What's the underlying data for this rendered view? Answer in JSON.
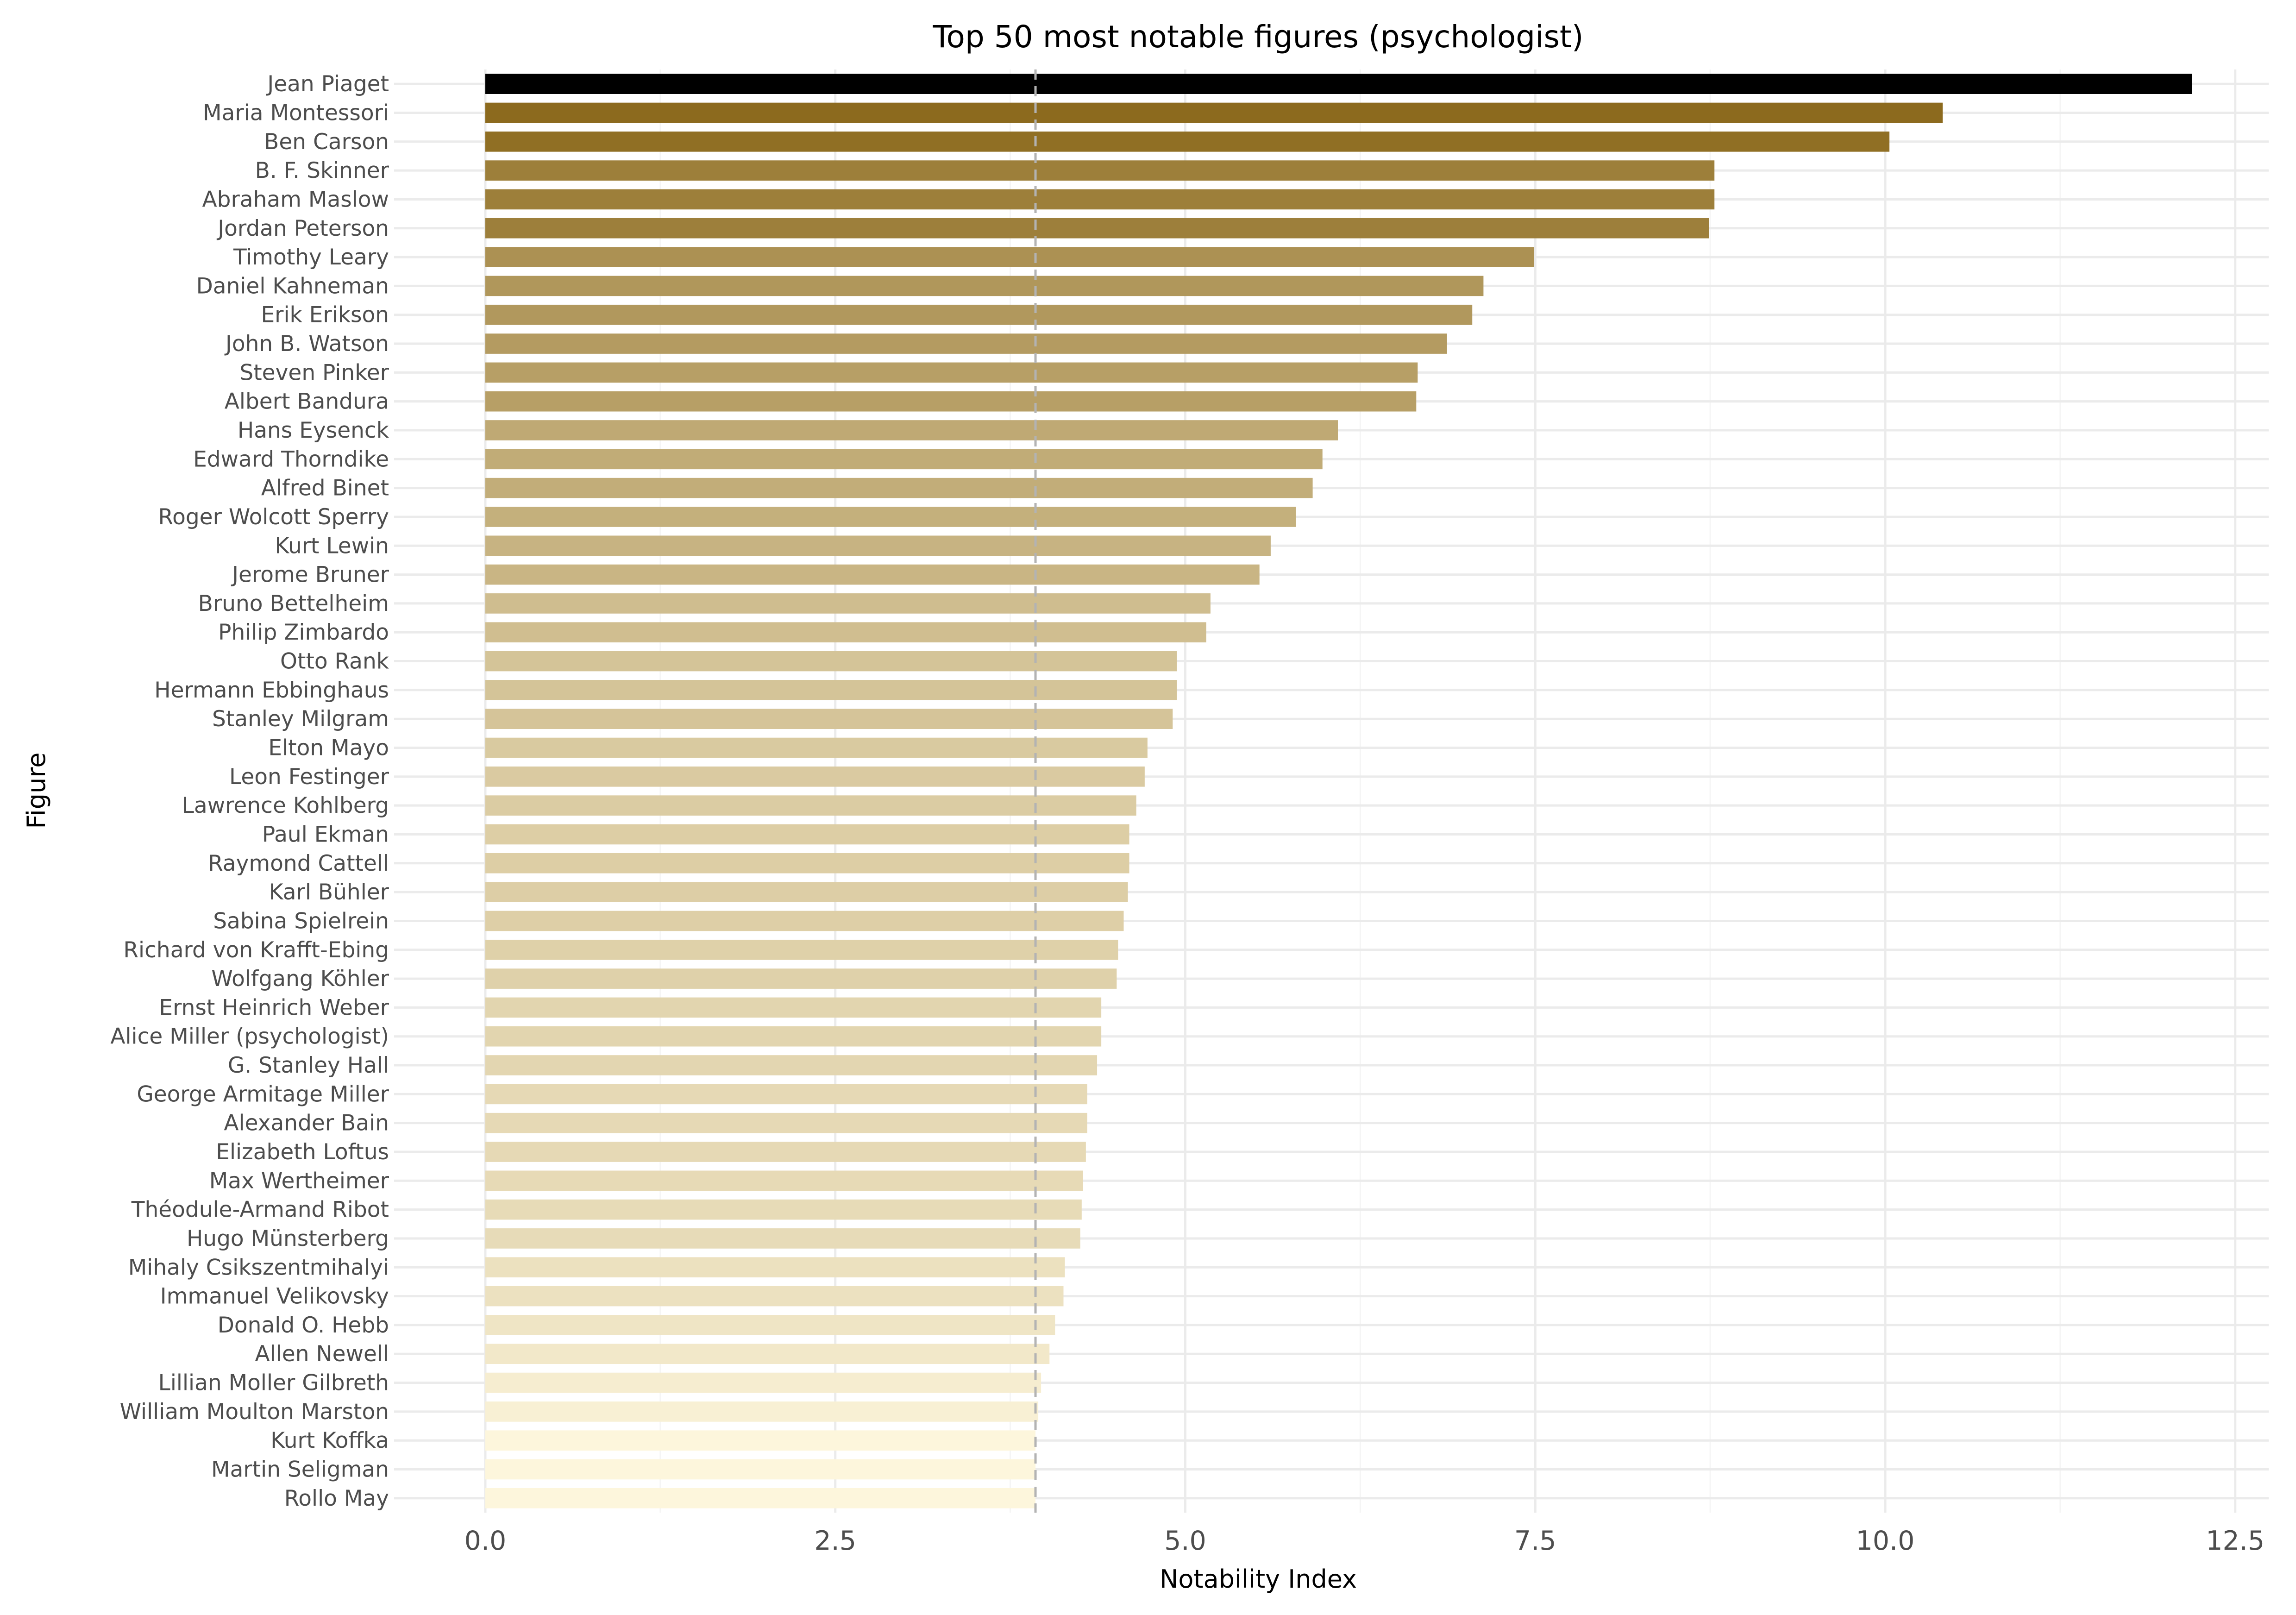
{
  "chart_data": {
    "type": "bar",
    "orientation": "horizontal",
    "title": "Top 50 most notable figures (psychologist)",
    "xlabel": "Notability Index",
    "ylabel": "Figure",
    "xlim": [
      -0.35,
      12.75
    ],
    "x_ticks": [
      0.0,
      2.5,
      5.0,
      7.5,
      10.0,
      12.5
    ],
    "x_tick_labels": [
      "0.0",
      "2.5",
      "5.0",
      "7.5",
      "10.0",
      "12.5"
    ],
    "reference_line": 3.93,
    "grid": true,
    "color_low": "#fdf6dc",
    "color_high": "#8c6a1e",
    "color_top": "#000000",
    "categories": [
      "Jean Piaget",
      "Maria Montessori",
      "Ben Carson",
      "B. F. Skinner",
      "Abraham Maslow",
      "Jordan Peterson",
      "Timothy Leary",
      "Daniel Kahneman",
      "Erik Erikson",
      "John B. Watson",
      "Steven Pinker",
      "Albert Bandura",
      "Hans Eysenck",
      "Edward Thorndike",
      "Alfred Binet",
      "Roger Wolcott Sperry",
      "Kurt Lewin",
      "Jerome Bruner",
      "Bruno Bettelheim",
      "Philip Zimbardo",
      "Otto Rank",
      "Hermann Ebbinghaus",
      "Stanley Milgram",
      "Elton Mayo",
      "Leon Festinger",
      "Lawrence Kohlberg",
      "Paul Ekman",
      "Raymond Cattell",
      "Karl Bühler",
      "Sabina Spielrein",
      "Richard von Krafft-Ebing",
      "Wolfgang Köhler",
      "Ernst Heinrich Weber",
      "Alice Miller (psychologist)",
      "G. Stanley Hall",
      "George Armitage Miller",
      "Alexander Bain",
      "Elizabeth Loftus",
      "Max Wertheimer",
      "Théodule-Armand Ribot",
      "Hugo Münsterberg",
      "Mihaly Csikszentmihalyi",
      "Immanuel Velikovsky",
      "Donald O. Hebb",
      "Allen Newell",
      "Lillian Moller Gilbreth",
      "William Moulton Marston",
      "Kurt Koffka",
      "Martin Seligman",
      "Rollo May"
    ],
    "values": [
      12.19,
      10.41,
      10.03,
      8.78,
      8.78,
      8.74,
      7.49,
      7.13,
      7.05,
      6.87,
      6.66,
      6.65,
      6.09,
      5.98,
      5.91,
      5.79,
      5.61,
      5.53,
      5.18,
      5.15,
      4.94,
      4.94,
      4.91,
      4.73,
      4.71,
      4.65,
      4.6,
      4.6,
      4.59,
      4.56,
      4.52,
      4.51,
      4.4,
      4.4,
      4.37,
      4.3,
      4.3,
      4.29,
      4.27,
      4.26,
      4.25,
      4.14,
      4.13,
      4.07,
      4.03,
      3.97,
      3.95,
      3.93,
      3.93,
      3.93
    ]
  }
}
